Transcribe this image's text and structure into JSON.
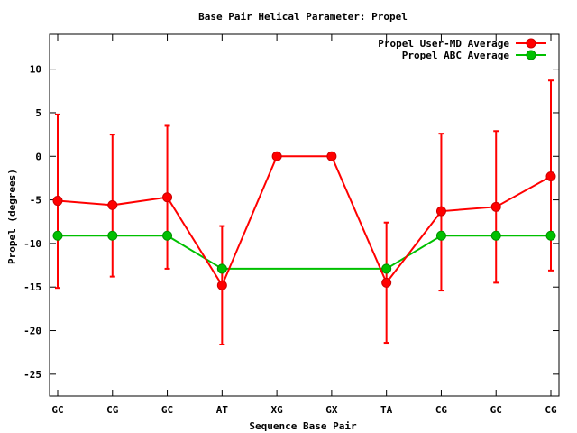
{
  "chart_data": {
    "type": "line",
    "title": "Base Pair Helical Parameter: Propel",
    "xlabel": "Sequence Base Pair",
    "ylabel": "Propel (degrees)",
    "categories": [
      "GC",
      "CG",
      "GC",
      "AT",
      "XG",
      "GX",
      "TA",
      "CG",
      "GC",
      "CG"
    ],
    "yticks": [
      -25,
      -20,
      -15,
      -10,
      -5,
      0,
      5,
      10
    ],
    "ylim": [
      -27.5,
      14
    ],
    "grid": false,
    "legend_position": "top-right",
    "series": [
      {
        "name": "Propel User-MD Average",
        "color": "#ff0000",
        "values": [
          -5.1,
          -5.6,
          -4.7,
          -14.8,
          0.0,
          0.0,
          -14.5,
          -6.3,
          -5.8,
          -2.3
        ],
        "error_low": [
          -15.1,
          -13.8,
          -12.9,
          -21.6,
          null,
          null,
          -21.4,
          -15.4,
          -14.5,
          -13.1
        ],
        "error_high": [
          4.8,
          2.5,
          3.5,
          -8.0,
          null,
          null,
          -7.6,
          2.6,
          2.9,
          8.7
        ]
      },
      {
        "name": "Propel ABC Average",
        "color": "#00c000",
        "values": [
          -9.1,
          -9.1,
          -9.1,
          -12.9,
          null,
          null,
          -12.9,
          -9.1,
          -9.1,
          -9.1
        ]
      }
    ]
  }
}
